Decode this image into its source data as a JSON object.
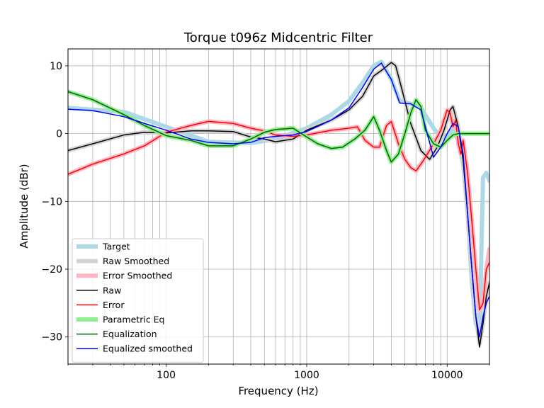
{
  "chart_data": {
    "type": "line",
    "title": "Torque t096z Midcentric Filter",
    "xlabel": "Frequency (Hz)",
    "ylabel": "Amplitude (dBr)",
    "x_scale": "log",
    "xlim": [
      20,
      20000
    ],
    "ylim": [
      -34,
      12.5
    ],
    "grid": true,
    "legend_position": "lower-left",
    "x_ticks": [
      {
        "value": 100,
        "label": "100"
      },
      {
        "value": 1000,
        "label": "1000"
      },
      {
        "value": 10000,
        "label": "10000"
      }
    ],
    "y_ticks": [
      {
        "value": 10,
        "label": "10"
      },
      {
        "value": 0,
        "label": "0"
      },
      {
        "value": -10,
        "label": "−10"
      },
      {
        "value": -20,
        "label": "−20"
      },
      {
        "value": -30,
        "label": "−30"
      }
    ],
    "series": [
      {
        "name": "Target",
        "color": "#add8e6",
        "width": 6,
        "x": [
          20,
          50,
          100,
          200,
          400,
          600,
          1000,
          1500,
          2000,
          2500,
          3000,
          3400,
          4000,
          4600,
          5500,
          6500,
          8000,
          9000,
          10000,
          11000,
          12000,
          13000,
          14000,
          15000,
          16000,
          17000,
          18000,
          19000,
          20000
        ],
        "values": [
          3.8,
          3.2,
          1.0,
          -1.2,
          -1.4,
          -0.8,
          0.8,
          2.8,
          4.8,
          7.5,
          10.0,
          10.6,
          8.0,
          4.8,
          4.4,
          3.8,
          0.8,
          -0.5,
          -0.3,
          0.6,
          -1.0,
          -4.5,
          -12.0,
          -22.0,
          -28.0,
          -29.5,
          -6.5,
          -5.8,
          -7.0
        ]
      },
      {
        "name": "Raw Smoothed",
        "color": "#d3d3d3",
        "width": 6,
        "x": [
          20,
          30,
          50,
          70,
          100,
          150,
          200,
          300,
          400,
          500,
          600,
          800,
          1000,
          1500,
          2000,
          2500,
          3000,
          3500,
          4000,
          4300,
          4700,
          5500,
          6500,
          7500,
          8500,
          9500,
          10500,
          11000,
          12000,
          13000,
          14000,
          15000,
          16000,
          17000,
          18000,
          19000,
          20000
        ],
        "values": [
          -2.5,
          -1.5,
          -0.2,
          0.2,
          0.1,
          0.4,
          0.4,
          0.3,
          -0.5,
          -0.8,
          -1.2,
          -0.8,
          0.5,
          2.0,
          3.5,
          5.5,
          8.5,
          9.5,
          10.5,
          10.0,
          7.0,
          1.5,
          -2.5,
          -3.8,
          -2.0,
          0.5,
          3.5,
          4.0,
          1.0,
          -4.0,
          -12.0,
          -20.0,
          -27.0,
          -31.0,
          -28.0,
          -24.0,
          -22.0
        ]
      },
      {
        "name": "Error Smoothed",
        "color": "#ffb6c1",
        "width": 6,
        "x": [
          20,
          30,
          50,
          70,
          100,
          150,
          200,
          300,
          400,
          500,
          600,
          800,
          1000,
          1500,
          2000,
          2300,
          2600,
          3000,
          3300,
          3700,
          4000,
          4500,
          5000,
          5500,
          6000,
          6500,
          7000,
          8000,
          9000,
          10000,
          10500,
          11000,
          11500,
          12000,
          12500,
          13000,
          14000,
          15000,
          16000,
          17000,
          18000,
          19000,
          20000
        ],
        "values": [
          -6.0,
          -4.5,
          -3.0,
          -1.8,
          0.2,
          1.2,
          1.8,
          1.5,
          0.8,
          0.4,
          -0.2,
          -0.4,
          -0.2,
          0.5,
          0.8,
          1.0,
          -1.0,
          -2.0,
          -2.0,
          1.2,
          1.8,
          -1.5,
          -3.8,
          -5.0,
          -5.5,
          -4.5,
          -3.5,
          -1.5,
          0.5,
          3.5,
          3.0,
          1.0,
          2.0,
          -1.5,
          -3.0,
          -1.0,
          -6.0,
          -13.0,
          -20.0,
          -26.0,
          -25.0,
          -20.0,
          -17.0
        ]
      },
      {
        "name": "Raw",
        "color": "#000000",
        "width": 1.5,
        "x": [
          20,
          30,
          50,
          70,
          100,
          150,
          200,
          300,
          400,
          500,
          600,
          800,
          1000,
          1500,
          2000,
          2500,
          3000,
          3500,
          4000,
          4300,
          4700,
          5500,
          6500,
          7500,
          8500,
          9500,
          10500,
          11000,
          12000,
          13000,
          14000,
          15000,
          16000,
          17000,
          18000,
          19000,
          20000
        ],
        "values": [
          -2.5,
          -1.5,
          -0.2,
          0.2,
          0.1,
          0.4,
          0.4,
          0.3,
          -0.5,
          -0.8,
          -1.2,
          -0.8,
          0.5,
          2.0,
          3.5,
          5.5,
          8.5,
          9.5,
          10.5,
          10.0,
          7.0,
          1.5,
          -2.5,
          -3.8,
          -2.0,
          0.5,
          3.5,
          4.0,
          1.0,
          -4.0,
          -12.0,
          -20.0,
          -27.0,
          -31.5,
          -28.0,
          -24.0,
          -22.0
        ]
      },
      {
        "name": "Error",
        "color": "#ff0000",
        "width": 1.5,
        "x": [
          20,
          30,
          50,
          70,
          100,
          150,
          200,
          300,
          400,
          500,
          600,
          800,
          1000,
          1500,
          2000,
          2300,
          2600,
          3000,
          3300,
          3700,
          4000,
          4500,
          5000,
          5500,
          6000,
          6500,
          7000,
          8000,
          9000,
          10000,
          10500,
          11000,
          11500,
          12000,
          12500,
          13000,
          14000,
          15000,
          16000,
          17000,
          18000,
          19000,
          20000
        ],
        "values": [
          -6.0,
          -4.5,
          -3.0,
          -1.8,
          0.2,
          1.2,
          1.8,
          1.5,
          0.8,
          0.4,
          -0.2,
          -0.4,
          -0.2,
          0.5,
          0.8,
          1.0,
          -1.0,
          -2.0,
          -2.0,
          1.2,
          1.8,
          -1.5,
          -3.8,
          -5.0,
          -5.5,
          -4.5,
          -3.5,
          -1.5,
          0.5,
          3.5,
          3.0,
          1.0,
          2.0,
          -1.5,
          -3.0,
          -1.0,
          -6.0,
          -13.0,
          -20.0,
          -26.0,
          -25.0,
          -20.0,
          -19.0
        ]
      },
      {
        "name": "Parametric Eq",
        "color": "#90ee90",
        "width": 6,
        "x": [
          20,
          30,
          50,
          70,
          100,
          150,
          200,
          300,
          400,
          500,
          600,
          800,
          1000,
          1200,
          1500,
          1800,
          2200,
          2600,
          3000,
          3300,
          3700,
          4000,
          4500,
          5000,
          5500,
          6000,
          6500,
          7000,
          8000,
          9000,
          10000,
          11000,
          12000,
          13000,
          14000,
          20000
        ],
        "values": [
          6.2,
          5.0,
          2.8,
          1.2,
          -0.3,
          -1.0,
          -1.8,
          -1.8,
          -0.8,
          0.2,
          0.6,
          0.8,
          -0.5,
          -1.5,
          -2.2,
          -2.0,
          -0.8,
          0.5,
          2.5,
          0.5,
          -2.5,
          -4.2,
          -3.0,
          0.0,
          3.0,
          5.0,
          4.0,
          0.5,
          -1.5,
          -2.0,
          -1.0,
          -0.2,
          0.0,
          0.0,
          0.0,
          0.0
        ]
      },
      {
        "name": "Equalization",
        "color": "#006400",
        "width": 1.5,
        "x": [
          20,
          30,
          50,
          70,
          100,
          150,
          200,
          300,
          400,
          500,
          600,
          800,
          1000,
          1200,
          1500,
          1800,
          2200,
          2600,
          3000,
          3300,
          3700,
          4000,
          4500,
          5000,
          5500,
          6000,
          6500,
          7000,
          8000,
          9000,
          10000,
          11000,
          12000,
          13000,
          14000,
          20000
        ],
        "values": [
          6.2,
          5.0,
          2.8,
          1.2,
          -0.3,
          -1.0,
          -1.8,
          -1.8,
          -0.8,
          0.2,
          0.6,
          0.8,
          -0.5,
          -1.5,
          -2.2,
          -2.0,
          -0.8,
          0.5,
          2.5,
          0.5,
          -2.5,
          -4.2,
          -3.0,
          0.0,
          3.0,
          5.0,
          4.0,
          0.5,
          -1.5,
          -2.0,
          -1.0,
          -0.2,
          0.0,
          0.0,
          0.0,
          0.0
        ]
      },
      {
        "name": "Equalized smoothed",
        "color": "#0000ff",
        "width": 1.5,
        "x": [
          20,
          30,
          50,
          70,
          100,
          150,
          200,
          300,
          400,
          500,
          600,
          800,
          1000,
          1500,
          2000,
          2500,
          3000,
          3400,
          4000,
          4600,
          5500,
          6500,
          8000,
          9000,
          10000,
          11000,
          12000,
          13000,
          14000,
          15000,
          16000,
          17000,
          18000,
          19000,
          20000
        ],
        "values": [
          3.6,
          3.4,
          2.5,
          1.5,
          0.5,
          -0.8,
          -1.3,
          -1.5,
          -1.3,
          -0.6,
          -0.4,
          -0.2,
          0.3,
          2.0,
          3.8,
          6.8,
          9.5,
          10.4,
          8.0,
          4.5,
          4.4,
          3.5,
          -3.5,
          -2.0,
          0.0,
          1.5,
          1.0,
          -3.0,
          -12.0,
          -20.0,
          -27.0,
          -30.0,
          -27.0,
          -25.0,
          -24.0
        ]
      }
    ]
  }
}
